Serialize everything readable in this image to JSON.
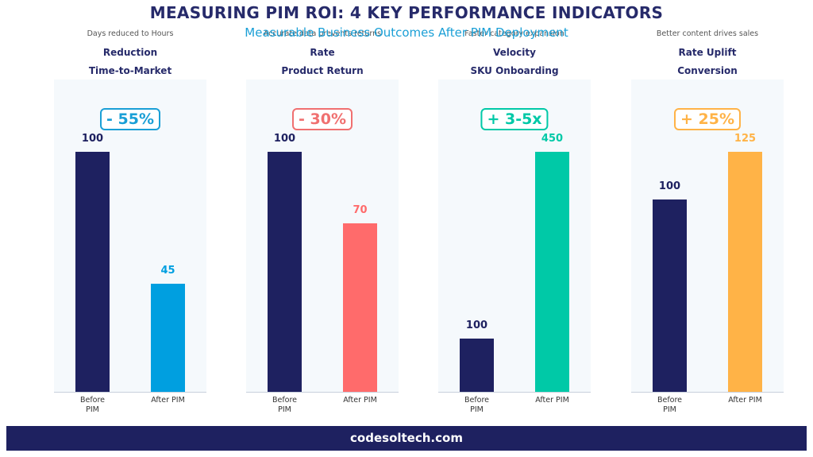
{
  "header": {
    "title": "MEASURING PIM ROI: 4 KEY PERFORMANCE INDICATORS",
    "subtitle": "Measurable Business Outcomes After PIM Deployment"
  },
  "chart_data": [
    {
      "type": "bar",
      "caption": "Days reduced to Hours",
      "title": "Reduction",
      "subtitle": "Time-to-Market",
      "badge": "- 55%",
      "badge_color": "#1a9fd6",
      "categories": [
        "Before PIM",
        "After PIM"
      ],
      "values": [
        100,
        45
      ],
      "colors": [
        "#1e2160",
        "#009fe0"
      ],
      "ylim": [
        0,
        130
      ]
    },
    {
      "type": "bar",
      "caption": "Accurate data prevents returns",
      "title": "Rate",
      "subtitle": "Product Return",
      "badge": "- 30%",
      "badge_color": "#f07070",
      "categories": [
        "Before PIM",
        "After PIM"
      ],
      "values": [
        100,
        70
      ],
      "colors": [
        "#1e2160",
        "#ff6b6b"
      ],
      "ylim": [
        0,
        130
      ]
    },
    {
      "type": "bar",
      "caption": "Faster category expansion",
      "title": "Velocity",
      "subtitle": "SKU Onboarding",
      "badge": "+ 3-5x",
      "badge_color": "#00c9a7",
      "categories": [
        "Before PIM",
        "After PIM"
      ],
      "values": [
        100,
        450
      ],
      "colors": [
        "#1e2160",
        "#00c9a7"
      ],
      "ylim": [
        0,
        585
      ]
    },
    {
      "type": "bar",
      "caption": "Better content drives sales",
      "title": "Rate Uplift",
      "subtitle": "Conversion",
      "badge": "+ 25%",
      "badge_color": "#ffb347",
      "categories": [
        "Before PIM",
        "After PIM"
      ],
      "values": [
        100,
        125
      ],
      "colors": [
        "#1e2160",
        "#ffb347"
      ],
      "ylim": [
        0,
        162.5
      ]
    }
  ],
  "footer": "codesoltech.com"
}
